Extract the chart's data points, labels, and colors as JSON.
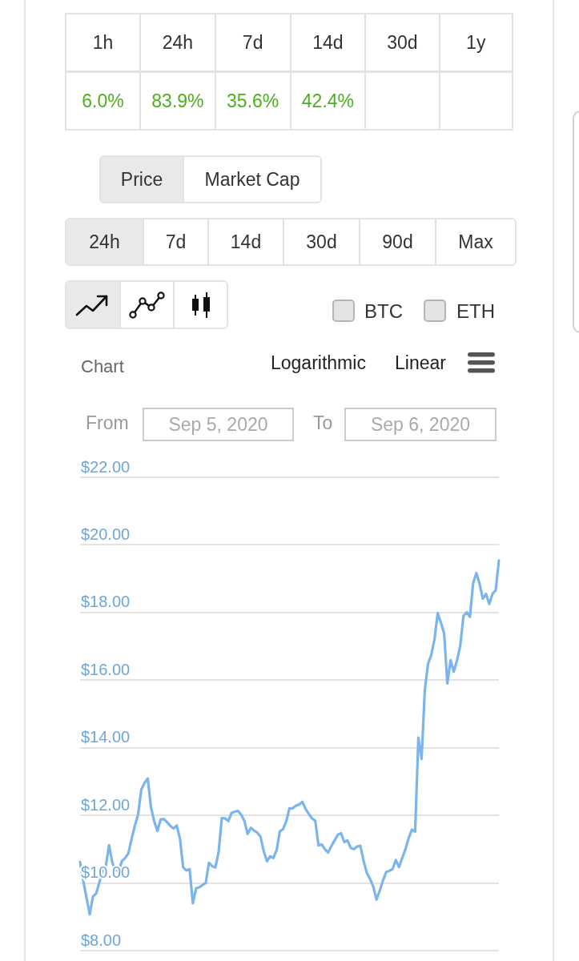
{
  "chart_data": [
    {
      "type": "other",
      "categories": [
        "1h",
        "24h",
        "7d",
        "14d",
        "30d",
        "1y"
      ],
      "values": [
        6.0,
        83.9,
        35.6,
        42.4,
        null,
        null
      ],
      "value_labels": [
        "6.0%",
        "83.9%",
        "35.6%",
        "42.4%",
        null,
        null
      ],
      "color": "#4caf1e"
    },
    {
      "type": "line",
      "title": "Chart",
      "annotations": [
        "Price",
        "Market Cap",
        "24h",
        "7d",
        "14d",
        "30d",
        "90d",
        "Max",
        "BTC",
        "ETH",
        "Logarithmic",
        "Linear",
        "From",
        "Sep 5, 2020",
        "To",
        "Sep 6, 2020"
      ],
      "categories": [
        null,
        null,
        null,
        null,
        null,
        null,
        null,
        null,
        null,
        null,
        null,
        null,
        null,
        null,
        null,
        null,
        null,
        null,
        null,
        null,
        null,
        null,
        null,
        null,
        null,
        null,
        null,
        null,
        null,
        null,
        null,
        null,
        null,
        null,
        null,
        null,
        null,
        null,
        null,
        null,
        null,
        null,
        null,
        null,
        null,
        null,
        null,
        null,
        null,
        null,
        null,
        null,
        null,
        null,
        null,
        null,
        null,
        null,
        null,
        null,
        null,
        null,
        null,
        null,
        null,
        null,
        null,
        null,
        null,
        null,
        null,
        null,
        null,
        null,
        null,
        null,
        null,
        null,
        null,
        null,
        null,
        null,
        null,
        null,
        null,
        null,
        null,
        null,
        null,
        null,
        null,
        null,
        null,
        null,
        null,
        null,
        null,
        null,
        null,
        null,
        null,
        null,
        null,
        null,
        null,
        null,
        null,
        null,
        null,
        null,
        null,
        null,
        null,
        null,
        null,
        null,
        null,
        null,
        null,
        null,
        null,
        null,
        null,
        null,
        null,
        null,
        null,
        null,
        null,
        null,
        null
      ],
      "values": [
        10.62,
        10.06,
        9.56,
        9.07,
        9.6,
        9.69,
        10.02,
        10.41,
        10.51,
        11.12,
        10.6,
        10.37,
        10.37,
        10.65,
        10.74,
        10.88,
        11.31,
        11.69,
        12.02,
        12.76,
        12.96,
        13.09,
        12.24,
        11.83,
        11.54,
        11.88,
        11.89,
        11.8,
        11.69,
        11.61,
        11.7,
        11.31,
        10.46,
        10.37,
        10.41,
        9.4,
        9.84,
        9.87,
        9.94,
        10.0,
        10.6,
        10.5,
        10.46,
        10.92,
        11.92,
        11.91,
        11.83,
        12.07,
        12.11,
        12.13,
        12.02,
        11.84,
        11.45,
        11.63,
        11.55,
        11.49,
        11.37,
        10.94,
        10.64,
        10.79,
        10.74,
        10.97,
        11.53,
        11.59,
        11.83,
        12.21,
        12.21,
        12.29,
        12.32,
        12.4,
        12.19,
        12.04,
        11.91,
        11.84,
        11.11,
        11.14,
        11.0,
        10.9,
        11.09,
        11.26,
        11.43,
        11.47,
        11.21,
        11.26,
        11.04,
        11.0,
        11.08,
        11.1,
        10.65,
        10.3,
        10.12,
        9.89,
        9.51,
        9.77,
        10.07,
        10.32,
        10.36,
        10.41,
        10.68,
        10.47,
        10.74,
        11.0,
        11.33,
        11.58,
        11.52,
        14.3,
        13.67,
        15.71,
        16.48,
        16.74,
        17.21,
        17.98,
        17.7,
        17.38,
        15.9,
        16.59,
        16.25,
        16.59,
        17.02,
        17.9,
        18.01,
        17.87,
        18.87,
        19.17,
        18.85,
        18.41,
        18.55,
        18.25,
        18.55,
        18.66,
        19.54
      ],
      "color": "#7cb5ec",
      "ylim": [
        8,
        22
      ],
      "yticks": [
        {
          "value": 8,
          "label": "$8.00"
        },
        {
          "value": 10,
          "label": "$10.00"
        },
        {
          "value": 12,
          "label": "$12.00"
        },
        {
          "value": 14,
          "label": "$14.00"
        },
        {
          "value": 16,
          "label": "$16.00"
        },
        {
          "value": 18,
          "label": "$18.00"
        },
        {
          "value": 20,
          "label": "$20.00"
        },
        {
          "value": 22,
          "label": "$22.00"
        }
      ],
      "grid": "y",
      "tick_labels": "y",
      "marker": "none"
    }
  ]
}
